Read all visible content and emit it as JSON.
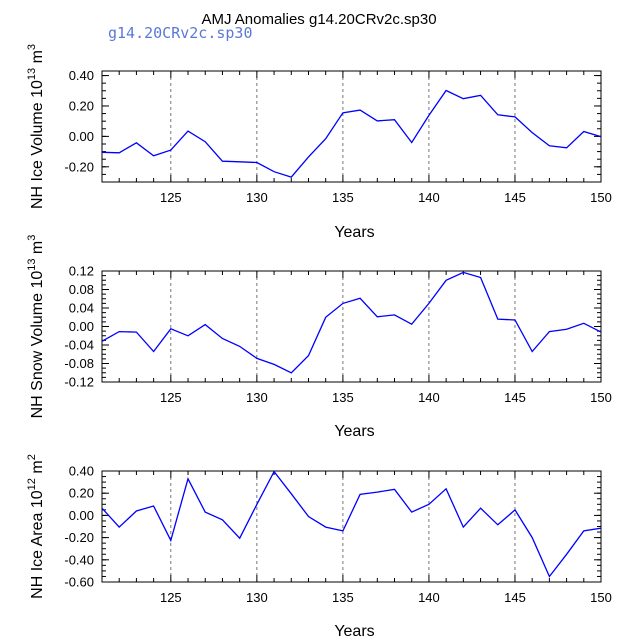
{
  "title": "AMJ Anomalies g14.20CRv2c.sp30",
  "subtitle": "g14.20CRv2c.sp30",
  "colors": {
    "line": "#0000ff",
    "axis": "#000000",
    "subtitle": "#5a78d8"
  },
  "chart_data": [
    {
      "type": "line",
      "title": "",
      "xlabel": "Years",
      "ylabel": {
        "base": "NH Ice Volume 10",
        "exp": "13",
        "unit": " m",
        "unit_exp": "3"
      },
      "xlim": [
        121,
        150
      ],
      "ylim": [
        -0.3,
        0.43
      ],
      "xticks": [
        125,
        130,
        135,
        140,
        145,
        150
      ],
      "yticks": [
        -0.2,
        0.0,
        0.2,
        0.4
      ],
      "ytick_labels": [
        "-0.20",
        "0.00",
        "0.20",
        "0.40"
      ],
      "grid": "vertical dashed at x ticks",
      "x": [
        121,
        122,
        123,
        124,
        125,
        126,
        127,
        128,
        129,
        130,
        131,
        132,
        133,
        134,
        135,
        136,
        137,
        138,
        139,
        140,
        141,
        142,
        143,
        144,
        145,
        146,
        147,
        148,
        149,
        150
      ],
      "series": [
        {
          "values": [
            -0.105,
            -0.108,
            -0.042,
            -0.128,
            -0.09,
            0.035,
            -0.035,
            -0.163,
            -0.167,
            -0.172,
            -0.232,
            -0.268,
            -0.135,
            -0.015,
            0.155,
            0.173,
            0.102,
            0.11,
            -0.04,
            0.138,
            0.302,
            0.248,
            0.27,
            0.142,
            0.128,
            0.025,
            -0.062,
            -0.075,
            0.032,
            -0.002
          ]
        }
      ]
    },
    {
      "type": "line",
      "title": "",
      "xlabel": "Years",
      "ylabel": {
        "base": "NH Snow Volume 10",
        "exp": "13",
        "unit": " m",
        "unit_exp": "3"
      },
      "xlim": [
        121,
        150
      ],
      "ylim": [
        -0.12,
        0.12
      ],
      "xticks": [
        125,
        130,
        135,
        140,
        145,
        150
      ],
      "yticks": [
        -0.12,
        -0.08,
        -0.04,
        0.0,
        0.04,
        0.08,
        0.12
      ],
      "ytick_labels": [
        "-0.12",
        "-0.08",
        "-0.04",
        "0.00",
        "0.04",
        "0.08",
        "0.12"
      ],
      "grid": "vertical dashed at x ticks",
      "x": [
        121,
        122,
        123,
        124,
        125,
        126,
        127,
        128,
        129,
        130,
        131,
        132,
        133,
        134,
        135,
        136,
        137,
        138,
        139,
        140,
        141,
        142,
        143,
        144,
        145,
        146,
        147,
        148,
        149,
        150
      ],
      "series": [
        {
          "values": [
            -0.032,
            -0.011,
            -0.012,
            -0.054,
            -0.005,
            -0.02,
            0.004,
            -0.026,
            -0.043,
            -0.069,
            -0.082,
            -0.1,
            -0.063,
            0.02,
            0.05,
            0.061,
            0.021,
            0.025,
            0.005,
            0.05,
            0.1,
            0.117,
            0.106,
            0.016,
            0.014,
            -0.054,
            -0.011,
            -0.006,
            0.007,
            -0.012
          ]
        }
      ]
    },
    {
      "type": "line",
      "title": "",
      "xlabel": "Years",
      "ylabel": {
        "base": "NH Ice Area 10",
        "exp": "12",
        "unit": " m",
        "unit_exp": "2"
      },
      "xlim": [
        121,
        150
      ],
      "ylim": [
        -0.6,
        0.4
      ],
      "xticks": [
        125,
        130,
        135,
        140,
        145,
        150
      ],
      "yticks": [
        -0.6,
        -0.4,
        -0.2,
        0.0,
        0.2,
        0.4
      ],
      "ytick_labels": [
        "-0.60",
        "-0.40",
        "-0.20",
        "0.00",
        "0.20",
        "0.40"
      ],
      "grid": "vertical dashed at x ticks",
      "x": [
        121,
        122,
        123,
        124,
        125,
        126,
        127,
        128,
        129,
        130,
        131,
        132,
        133,
        134,
        135,
        136,
        137,
        138,
        139,
        140,
        141,
        142,
        143,
        144,
        145,
        146,
        147,
        148,
        149,
        150
      ],
      "series": [
        {
          "values": [
            0.065,
            -0.105,
            0.04,
            0.085,
            -0.225,
            0.33,
            0.03,
            -0.04,
            -0.205,
            0.1,
            0.395,
            0.195,
            -0.01,
            -0.105,
            -0.14,
            0.19,
            0.21,
            0.235,
            0.03,
            0.1,
            0.24,
            -0.105,
            0.065,
            -0.085,
            0.05,
            -0.2,
            -0.55,
            -0.35,
            -0.14,
            -0.115
          ]
        }
      ]
    }
  ]
}
